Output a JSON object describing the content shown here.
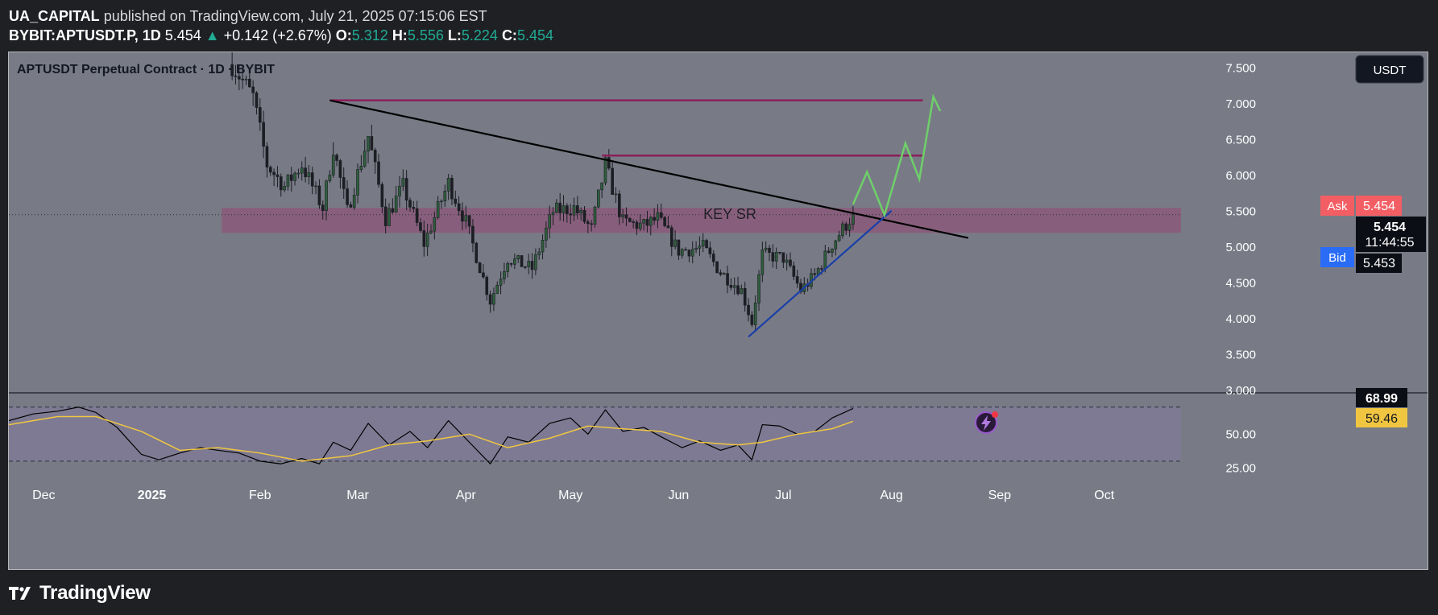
{
  "header": {
    "author": "UA_CAPITAL",
    "published": "published on TradingView.com, July 21, 2025 07:15:06 EST",
    "symbol": "BYBIT:APTUSDT.P, 1D",
    "last": "5.454",
    "change": "+0.142 (+2.67%)",
    "o_label": "O:",
    "o_value": "5.312",
    "h_label": "H:",
    "h_value": "5.556",
    "l_label": "L:",
    "l_value": "5.224",
    "c_label": "C:",
    "c_value": "5.454"
  },
  "footer": {
    "brand": "TradingView"
  },
  "colors": {
    "pane_bg": "#787b86",
    "rsi_bg": "#7e7a93",
    "candle_up": "#2e5e3c",
    "candle_down": "#1c1e24",
    "resistance": "#8a1f5a",
    "trendline": "#000000",
    "support": "#1a3fa8",
    "forecast": "#6fcf6a",
    "key_zone": "#8a5a7a",
    "rsi_line": "#000000",
    "rsi_ma": "#f0c640",
    "ask": "#f25e63",
    "bid": "#2a6cf6"
  },
  "chart_data": [
    {
      "type": "candlestick",
      "title": "APTUSDT Perpetual Contract · 1D · BYBIT",
      "currency": "USDT",
      "x_ticks": [
        "Dec",
        "2025",
        "Feb",
        "Mar",
        "Apr",
        "May",
        "Jun",
        "Jul",
        "Aug",
        "Sep",
        "Oct"
      ],
      "x_tick_dates": [
        "2024-12-01",
        "2025-01-01",
        "2025-02-01",
        "2025-03-01",
        "2025-04-01",
        "2025-05-01",
        "2025-06-01",
        "2025-07-01",
        "2025-08-01",
        "2025-09-01",
        "2025-10-01"
      ],
      "y_ticks": [
        "3.000",
        "3.500",
        "4.000",
        "4.500",
        "5.000",
        "5.500",
        "6.000",
        "6.500",
        "7.000",
        "7.500"
      ],
      "y_tick_values": [
        3.0,
        3.5,
        4.0,
        4.5,
        5.0,
        5.5,
        6.0,
        6.5,
        7.0,
        7.5
      ],
      "ylim": [
        2.98,
        7.72
      ],
      "xlim": [
        "2024-11-21",
        "2025-10-23"
      ],
      "candle_range": [
        "2025-01-24",
        "2025-07-21"
      ],
      "price_path": [
        {
          "date": "2025-01-24",
          "price": 7.55
        },
        {
          "date": "2025-01-30",
          "price": 7.1
        },
        {
          "date": "2025-02-03",
          "price": 6.15
        },
        {
          "date": "2025-02-08",
          "price": 5.85
        },
        {
          "date": "2025-02-13",
          "price": 6.15
        },
        {
          "date": "2025-02-19",
          "price": 5.55
        },
        {
          "date": "2025-02-22",
          "price": 6.4
        },
        {
          "date": "2025-02-26",
          "price": 5.5
        },
        {
          "date": "2025-03-04",
          "price": 6.55
        },
        {
          "date": "2025-03-09",
          "price": 5.4
        },
        {
          "date": "2025-03-14",
          "price": 5.85
        },
        {
          "date": "2025-03-20",
          "price": 5.05
        },
        {
          "date": "2025-03-27",
          "price": 5.9
        },
        {
          "date": "2025-04-01",
          "price": 5.35
        },
        {
          "date": "2025-04-08",
          "price": 4.25
        },
        {
          "date": "2025-04-13",
          "price": 4.85
        },
        {
          "date": "2025-04-20",
          "price": 4.7
        },
        {
          "date": "2025-04-26",
          "price": 5.5
        },
        {
          "date": "2025-05-02",
          "price": 5.55
        },
        {
          "date": "2025-05-07",
          "price": 5.25
        },
        {
          "date": "2025-05-11",
          "price": 6.15
        },
        {
          "date": "2025-05-16",
          "price": 5.35
        },
        {
          "date": "2025-05-22",
          "price": 5.3
        },
        {
          "date": "2025-05-26",
          "price": 5.4
        },
        {
          "date": "2025-06-01",
          "price": 4.95
        },
        {
          "date": "2025-06-08",
          "price": 5.0
        },
        {
          "date": "2025-06-13",
          "price": 4.65
        },
        {
          "date": "2025-06-19",
          "price": 4.4
        },
        {
          "date": "2025-06-22",
          "price": 3.95
        },
        {
          "date": "2025-06-25",
          "price": 4.9
        },
        {
          "date": "2025-07-01",
          "price": 4.85
        },
        {
          "date": "2025-07-06",
          "price": 4.4
        },
        {
          "date": "2025-07-10",
          "price": 4.6
        },
        {
          "date": "2025-07-15",
          "price": 5.05
        },
        {
          "date": "2025-07-21",
          "price": 5.454
        }
      ],
      "drawings": {
        "resistance_lines": [
          {
            "from": "2025-02-21",
            "to": "2025-08-10",
            "price": 7.05
          },
          {
            "from": "2025-05-10",
            "to": "2025-08-10",
            "price": 6.28
          }
        ],
        "descending_trendline": {
          "from": {
            "date": "2025-02-21",
            "price": 7.05
          },
          "to": {
            "date": "2025-08-23",
            "price": 5.13
          }
        },
        "ascending_trendline": {
          "from": {
            "date": "2025-06-21",
            "price": 3.75
          },
          "to": {
            "date": "2025-08-01",
            "price": 5.51
          }
        },
        "key_zone": {
          "label": "KEY SR",
          "from": "2025-01-21",
          "to": "2025-10-23",
          "price_low": 5.2,
          "price_high": 5.55
        },
        "forecast_path": [
          {
            "date": "2025-07-21",
            "price": 5.6
          },
          {
            "date": "2025-07-25",
            "price": 6.05
          },
          {
            "date": "2025-07-30",
            "price": 5.45
          },
          {
            "date": "2025-08-05",
            "price": 6.45
          },
          {
            "date": "2025-08-09",
            "price": 5.95
          },
          {
            "date": "2025-08-13",
            "price": 7.1
          },
          {
            "date": "2025-08-15",
            "price": 6.9
          }
        ]
      },
      "price_labels": {
        "ask_label": "Ask",
        "ask": "5.454",
        "last": "5.454",
        "countdown": "11:44:55",
        "bid_label": "Bid",
        "bid": "5.453"
      }
    },
    {
      "type": "line",
      "title": "",
      "y_ticks": [
        "25.00",
        "50.00"
      ],
      "y_tick_values": [
        25,
        50
      ],
      "ylim": [
        18,
        80
      ],
      "bands": [
        30,
        70
      ],
      "series": [
        {
          "values": [
            {
              "date": "2024-11-21",
              "value": 60
            },
            {
              "date": "2024-11-28",
              "value": 65
            },
            {
              "date": "2024-12-05",
              "value": 67
            },
            {
              "date": "2024-12-11",
              "value": 70
            },
            {
              "date": "2024-12-16",
              "value": 66
            },
            {
              "date": "2024-12-22",
              "value": 55
            },
            {
              "date": "2024-12-29",
              "value": 35
            },
            {
              "date": "2025-01-03",
              "value": 31
            },
            {
              "date": "2025-01-09",
              "value": 36
            },
            {
              "date": "2025-01-15",
              "value": 40
            },
            {
              "date": "2025-01-20",
              "value": 38
            },
            {
              "date": "2025-01-26",
              "value": 36
            },
            {
              "date": "2025-02-01",
              "value": 30
            },
            {
              "date": "2025-02-07",
              "value": 28
            },
            {
              "date": "2025-02-13",
              "value": 32
            },
            {
              "date": "2025-02-18",
              "value": 28
            },
            {
              "date": "2025-02-22",
              "value": 44
            },
            {
              "date": "2025-02-27",
              "value": 38
            },
            {
              "date": "2025-03-04",
              "value": 58
            },
            {
              "date": "2025-03-10",
              "value": 42
            },
            {
              "date": "2025-03-16",
              "value": 52
            },
            {
              "date": "2025-03-21",
              "value": 40
            },
            {
              "date": "2025-03-27",
              "value": 60
            },
            {
              "date": "2025-04-02",
              "value": 44
            },
            {
              "date": "2025-04-08",
              "value": 28
            },
            {
              "date": "2025-04-13",
              "value": 48
            },
            {
              "date": "2025-04-19",
              "value": 44
            },
            {
              "date": "2025-04-25",
              "value": 58
            },
            {
              "date": "2025-05-01",
              "value": 62
            },
            {
              "date": "2025-05-06",
              "value": 50
            },
            {
              "date": "2025-05-11",
              "value": 68
            },
            {
              "date": "2025-05-16",
              "value": 52
            },
            {
              "date": "2025-05-22",
              "value": 55
            },
            {
              "date": "2025-05-27",
              "value": 48
            },
            {
              "date": "2025-06-02",
              "value": 40
            },
            {
              "date": "2025-06-07",
              "value": 45
            },
            {
              "date": "2025-06-13",
              "value": 38
            },
            {
              "date": "2025-06-18",
              "value": 42
            },
            {
              "date": "2025-06-22",
              "value": 31
            },
            {
              "date": "2025-06-25",
              "value": 57
            },
            {
              "date": "2025-06-30",
              "value": 56
            },
            {
              "date": "2025-07-05",
              "value": 50
            },
            {
              "date": "2025-07-10",
              "value": 52
            },
            {
              "date": "2025-07-15",
              "value": 62
            },
            {
              "date": "2025-07-21",
              "value": 68.99
            }
          ]
        },
        {
          "values": [
            {
              "date": "2024-11-21",
              "value": 57
            },
            {
              "date": "2024-12-05",
              "value": 63
            },
            {
              "date": "2024-12-16",
              "value": 63
            },
            {
              "date": "2024-12-29",
              "value": 52
            },
            {
              "date": "2025-01-09",
              "value": 38
            },
            {
              "date": "2025-01-20",
              "value": 40
            },
            {
              "date": "2025-02-01",
              "value": 36
            },
            {
              "date": "2025-02-13",
              "value": 30
            },
            {
              "date": "2025-02-27",
              "value": 34
            },
            {
              "date": "2025-03-10",
              "value": 42
            },
            {
              "date": "2025-03-21",
              "value": 45
            },
            {
              "date": "2025-04-02",
              "value": 50
            },
            {
              "date": "2025-04-13",
              "value": 40
            },
            {
              "date": "2025-04-25",
              "value": 47
            },
            {
              "date": "2025-05-06",
              "value": 56
            },
            {
              "date": "2025-05-16",
              "value": 54
            },
            {
              "date": "2025-05-27",
              "value": 52
            },
            {
              "date": "2025-06-07",
              "value": 44
            },
            {
              "date": "2025-06-18",
              "value": 42
            },
            {
              "date": "2025-06-25",
              "value": 44
            },
            {
              "date": "2025-07-05",
              "value": 50
            },
            {
              "date": "2025-07-15",
              "value": 54
            },
            {
              "date": "2025-07-21",
              "value": 59.46
            }
          ]
        }
      ],
      "value_labels": {
        "rsi": "68.99",
        "rsi_ma": "59.46"
      }
    }
  ]
}
